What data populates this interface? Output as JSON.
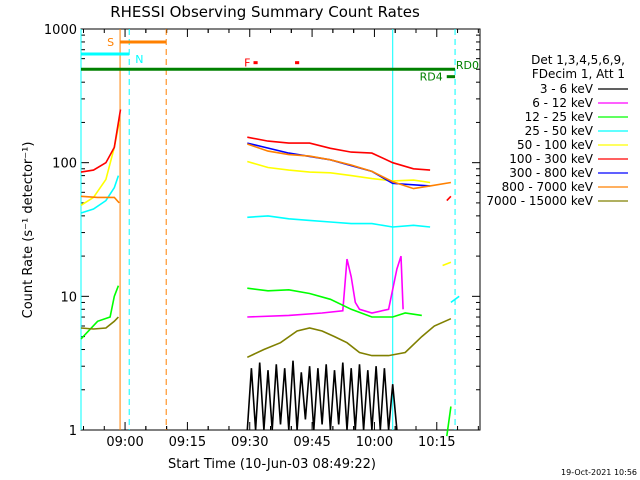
{
  "chart_data": {
    "type": "line",
    "title": "RHESSI Observing Summary Count Rates",
    "xlabel": "Start Time (10-Jun-03 08:49:22)",
    "ylabel": "Count Rate (s⁻¹ detector⁻¹)",
    "yscale": "log",
    "ylim": [
      1,
      1000
    ],
    "xlim_minutes": [
      0,
      96
    ],
    "x_ticks": [
      {
        "label": "09:00",
        "min": 10.6
      },
      {
        "label": "09:15",
        "min": 25.6
      },
      {
        "label": "09:30",
        "min": 40.6
      },
      {
        "label": "09:45",
        "min": 55.6
      },
      {
        "label": "10:00",
        "min": 70.6
      },
      {
        "label": "10:15",
        "min": 85.6
      }
    ],
    "y_ticks": [
      {
        "label": "1",
        "value": 1
      },
      {
        "label": "10",
        "value": 10
      },
      {
        "label": "100",
        "value": 100
      },
      {
        "label": "1000",
        "value": 1000
      }
    ],
    "legend_header": [
      "Det 1,3,4,5,6,9,",
      "FDecim 1, Att 1"
    ],
    "series": [
      {
        "name": "3 - 6 keV",
        "color": "#000000",
        "segments": [
          [
            [
              40,
              1
            ],
            [
              41,
              2.9
            ],
            [
              42,
              1
            ],
            [
              43,
              3.2
            ],
            [
              44,
              1
            ],
            [
              45,
              2.8
            ],
            [
              46,
              1
            ],
            [
              47,
              3.1
            ],
            [
              48,
              1.1
            ],
            [
              49,
              2.9
            ],
            [
              50,
              1
            ],
            [
              51,
              3.3
            ],
            [
              52,
              1
            ],
            [
              53,
              2.7
            ],
            [
              54,
              1.2
            ],
            [
              55,
              3.0
            ],
            [
              56,
              1
            ],
            [
              57,
              2.9
            ],
            [
              58,
              1.1
            ],
            [
              59,
              3.1
            ],
            [
              60,
              1
            ],
            [
              61,
              2.8
            ],
            [
              62,
              1.1
            ],
            [
              63,
              3.2
            ],
            [
              64,
              1
            ],
            [
              65,
              2.9
            ],
            [
              66,
              1
            ],
            [
              67,
              3.1
            ],
            [
              68,
              1
            ],
            [
              69,
              2.8
            ],
            [
              70,
              1
            ],
            [
              71,
              3.0
            ],
            [
              72,
              1
            ],
            [
              73,
              2.9
            ],
            [
              74,
              1
            ],
            [
              75,
              2.2
            ],
            [
              76,
              1
            ]
          ]
        ]
      },
      {
        "name": "6 - 12 keV",
        "color": "#ff00ff",
        "segments": [
          [
            [
              40,
              7.0
            ],
            [
              50,
              7.2
            ],
            [
              58,
              7.5
            ],
            [
              63,
              7.8
            ],
            [
              64,
              19
            ],
            [
              65,
              14
            ],
            [
              66,
              9
            ],
            [
              67,
              8
            ],
            [
              70,
              7.5
            ],
            [
              74,
              8
            ],
            [
              76,
              16
            ],
            [
              77,
              20
            ],
            [
              77.5,
              8
            ]
          ]
        ]
      },
      {
        "name": "12 - 25 keV",
        "color": "#00ff00",
        "segments": [
          [
            [
              0,
              4.8
            ],
            [
              4,
              6.5
            ],
            [
              7,
              7
            ],
            [
              8,
              10
            ],
            [
              9,
              12
            ]
          ],
          [
            [
              40,
              11.5
            ],
            [
              45,
              11
            ],
            [
              50,
              11.2
            ],
            [
              55,
              10.5
            ],
            [
              60,
              9.5
            ],
            [
              65,
              8
            ],
            [
              70,
              7
            ],
            [
              75,
              7
            ],
            [
              78,
              7.5
            ],
            [
              82,
              7.2
            ]
          ],
          [
            [
              88,
              0.9
            ],
            [
              89,
              1.5
            ]
          ]
        ]
      },
      {
        "name": "25 - 50 keV",
        "color": "#00ffff",
        "segments": [
          [
            [
              0,
              42
            ],
            [
              3,
              45
            ],
            [
              6,
              52
            ],
            [
              8,
              65
            ],
            [
              9,
              80
            ]
          ],
          [
            [
              40,
              39
            ],
            [
              45,
              40
            ],
            [
              50,
              38
            ],
            [
              55,
              37
            ],
            [
              60,
              36
            ],
            [
              65,
              35
            ],
            [
              70,
              35
            ],
            [
              75,
              33
            ],
            [
              80,
              34
            ],
            [
              84,
              33
            ]
          ],
          [
            [
              89,
              9
            ],
            [
              91,
              10
            ]
          ]
        ]
      },
      {
        "name": "50 - 100 keV",
        "color": "#ffff00",
        "segments": [
          [
            [
              0,
              48
            ],
            [
              3,
              55
            ],
            [
              6,
              75
            ],
            [
              8,
              130
            ],
            [
              9.2,
              200
            ]
          ],
          [
            [
              40,
              102
            ],
            [
              45,
              92
            ],
            [
              50,
              88
            ],
            [
              55,
              85
            ],
            [
              60,
              84
            ],
            [
              65,
              80
            ],
            [
              70,
              76
            ],
            [
              75,
              73
            ],
            [
              80,
              74
            ],
            [
              84,
              71
            ]
          ],
          [
            [
              87,
              17
            ],
            [
              89,
              18
            ]
          ]
        ]
      },
      {
        "name": "100 - 300 keV",
        "color": "#ff0000",
        "segments": [
          [
            [
              0,
              85
            ],
            [
              3,
              88
            ],
            [
              6,
              100
            ],
            [
              8,
              130
            ],
            [
              9.5,
              250
            ]
          ],
          [
            [
              40,
              155
            ],
            [
              45,
              145
            ],
            [
              50,
              140
            ],
            [
              55,
              140
            ],
            [
              60,
              128
            ],
            [
              65,
              120
            ],
            [
              70,
              118
            ],
            [
              75,
              100
            ],
            [
              80,
              90
            ],
            [
              84,
              88
            ]
          ],
          [
            [
              88,
              52
            ],
            [
              89,
              56
            ]
          ]
        ]
      },
      {
        "name": "300 - 800 keV",
        "color": "#0000ff",
        "segments": [
          [
            [
              40,
              140
            ],
            [
              50,
              118
            ],
            [
              60,
              105
            ],
            [
              70,
              86
            ],
            [
              75,
              70
            ],
            [
              84,
              67
            ]
          ]
        ]
      },
      {
        "name": "800 - 7000 keV",
        "color": "#ff8000",
        "segments": [
          [
            [
              0,
              56
            ],
            [
              4,
              55
            ],
            [
              8,
              55
            ],
            [
              9.2,
              50
            ]
          ],
          [
            [
              40,
              138
            ],
            [
              45,
              122
            ],
            [
              50,
              115
            ],
            [
              55,
              112
            ],
            [
              60,
              105
            ],
            [
              65,
              96
            ],
            [
              70,
              86
            ],
            [
              75,
              72
            ],
            [
              80,
              64
            ],
            [
              84,
              67
            ],
            [
              89,
              71
            ]
          ]
        ]
      },
      {
        "name": "7000 - 15000 keV",
        "color": "#808000",
        "segments": [
          [
            [
              0,
              5.8
            ],
            [
              3,
              5.7
            ],
            [
              6,
              5.8
            ],
            [
              8,
              6.5
            ],
            [
              9,
              7
            ]
          ],
          [
            [
              40,
              3.5
            ],
            [
              44,
              4
            ],
            [
              48,
              4.5
            ],
            [
              52,
              5.5
            ],
            [
              55,
              5.8
            ],
            [
              58,
              5.5
            ],
            [
              61,
              5
            ],
            [
              64,
              4.5
            ],
            [
              67,
              3.8
            ],
            [
              70,
              3.6
            ],
            [
              74,
              3.6
            ],
            [
              78,
              3.8
            ],
            [
              82,
              5
            ],
            [
              85,
              6
            ],
            [
              89,
              6.8
            ]
          ]
        ]
      }
    ],
    "annotations": [
      {
        "label": "S",
        "color": "#ff8000",
        "start": 9.4,
        "end": 20.5,
        "y": 800
      },
      {
        "label": "N",
        "color": "#00ffff",
        "start": 0,
        "end": 11.6,
        "y": 650
      },
      {
        "label": "F",
        "color": "#ff0000",
        "start": 41.5,
        "end": 42.5,
        "y": 560
      },
      {
        "label": "",
        "color": "#ff0000",
        "start": 51.5,
        "end": 52.5,
        "y": 560
      },
      {
        "label": "RD0",
        "color": "#008000",
        "start": 0,
        "end": 90,
        "y": 500
      },
      {
        "label": "RD4",
        "color": "#008000",
        "start": 88,
        "end": 90,
        "y": 440
      }
    ],
    "vlines": [
      {
        "min": 0,
        "color": "#00ffff",
        "style": "solid"
      },
      {
        "min": 9.4,
        "color": "#ff8000",
        "style": "solid"
      },
      {
        "min": 11.6,
        "color": "#00ffff",
        "style": "dashed"
      },
      {
        "min": 20.5,
        "color": "#ff8000",
        "style": "dashed"
      },
      {
        "min": 75.0,
        "color": "#00ffff",
        "style": "solid"
      },
      {
        "min": 90.0,
        "color": "#00ffff",
        "style": "dashed"
      }
    ],
    "footer_date": "19-Oct-2021 10:56"
  }
}
